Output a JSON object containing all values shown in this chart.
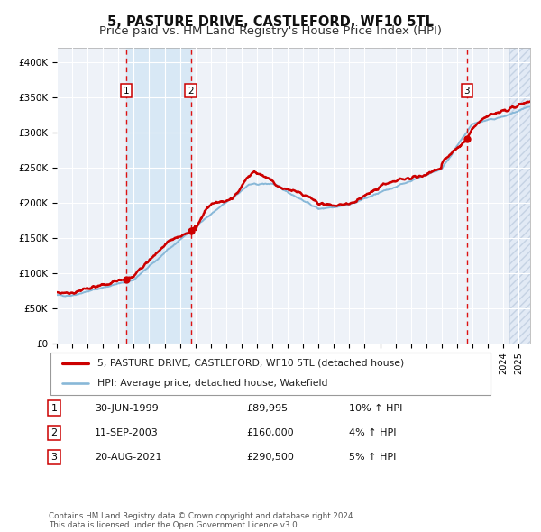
{
  "title": "5, PASTURE DRIVE, CASTLEFORD, WF10 5TL",
  "subtitle": "Price paid vs. HM Land Registry's House Price Index (HPI)",
  "ylim": [
    0,
    420000
  ],
  "yticks": [
    0,
    50000,
    100000,
    150000,
    200000,
    250000,
    300000,
    350000,
    400000
  ],
  "ytick_labels": [
    "£0",
    "£50K",
    "£100K",
    "£150K",
    "£200K",
    "£250K",
    "£300K",
    "£350K",
    "£400K"
  ],
  "background_color": "#ffffff",
  "plot_bg_color": "#eef2f8",
  "grid_color": "#ffffff",
  "sale_dates_num": [
    1999.496,
    2003.704,
    2021.635
  ],
  "sale_prices": [
    89995,
    160000,
    290500
  ],
  "sale_labels": [
    "1",
    "2",
    "3"
  ],
  "vline_color": "#dd1111",
  "sale_marker_color": "#cc0000",
  "shade_color": "#d8e8f5",
  "hatch_color": "#c8d8ee",
  "legend_entries": [
    {
      "label": "5, PASTURE DRIVE, CASTLEFORD, WF10 5TL (detached house)",
      "color": "#cc0000",
      "lw": 1.8
    },
    {
      "label": "HPI: Average price, detached house, Wakefield",
      "color": "#88b8d8",
      "lw": 1.4
    }
  ],
  "table_rows": [
    {
      "num": "1",
      "date": "30-JUN-1999",
      "price": "£89,995",
      "hpi": "10% ↑ HPI"
    },
    {
      "num": "2",
      "date": "11-SEP-2003",
      "price": "£160,000",
      "hpi": "4% ↑ HPI"
    },
    {
      "num": "3",
      "date": "20-AUG-2021",
      "price": "£290,500",
      "hpi": "5% ↑ HPI"
    }
  ],
  "footnote": "Contains HM Land Registry data © Crown copyright and database right 2024.\nThis data is licensed under the Open Government Licence v3.0.",
  "xlim_start": 1995.0,
  "xlim_end": 2025.75,
  "hatch_start": 2024.42
}
